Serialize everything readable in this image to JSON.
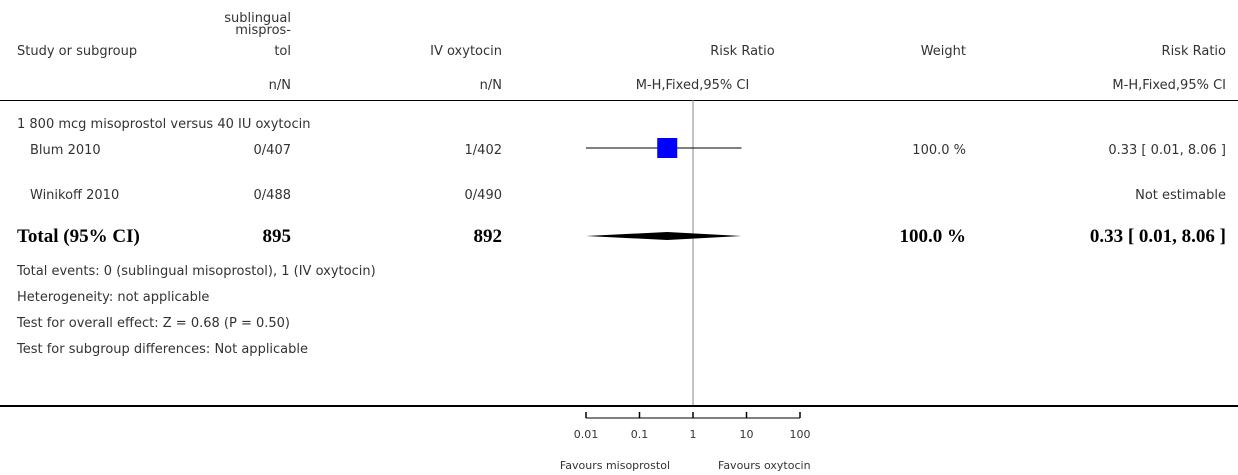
{
  "header": {
    "study": "Study or subgroup",
    "exp_line1": "sublingual",
    "exp_line2": "mispros-",
    "exp_line3": "tol",
    "ctrl": "IV oxytocin",
    "rr_plot": "Risk Ratio",
    "weight": "Weight",
    "rr_text": "Risk Ratio",
    "exp_nN": "n/N",
    "ctrl_nN": "n/N",
    "plot_method": "M-H,Fixed,95% CI",
    "text_method": "M-H,Fixed,95% CI"
  },
  "subgroup": "1 800 mcg misoprostol versus 40 IU oxytocin",
  "studies": [
    {
      "name": "Blum 2010",
      "exp": "0/407",
      "ctrl": "1/402",
      "weight": "100.0 %",
      "ci_text": "0.33 [ 0.01, 8.06 ]"
    },
    {
      "name": "Winikoff 2010",
      "exp": "0/488",
      "ctrl": "0/490",
      "weight": "",
      "ci_text": "Not estimable"
    }
  ],
  "total": {
    "label": "Total (95% CI)",
    "exp": "895",
    "ctrl": "892",
    "weight": "100.0 %",
    "ci_text": "0.33 [ 0.01, 8.06 ]"
  },
  "footnotes": {
    "events": "Total events: 0 (sublingual misoprostol), 1 (IV oxytocin)",
    "heterogeneity": "Heterogeneity: not applicable",
    "overall": "Test for overall effect: Z = 0.68 (P = 0.50)",
    "subgroup": "Test for subgroup differences: Not applicable"
  },
  "axis": {
    "ticks": [
      "0.01",
      "0.1",
      "1",
      "10",
      "100"
    ],
    "favours_left": "Favours misoprostol",
    "favours_right": "Favours oxytocin"
  },
  "colors": {
    "study_box": "#0000ff",
    "diamond": "#000000"
  },
  "chart_data": {
    "type": "forest",
    "scale": "log",
    "xlim": [
      0.01,
      100
    ],
    "tick_values": [
      0.01,
      0.1,
      1,
      10,
      100
    ],
    "reference_line": 1,
    "studies": [
      {
        "name": "Blum 2010",
        "rr": 0.33,
        "ci_low": 0.01,
        "ci_high": 8.06,
        "weight": 100.0
      },
      {
        "name": "Winikoff 2010",
        "rr": null,
        "ci_low": null,
        "ci_high": null,
        "weight": null
      }
    ],
    "pooled": {
      "rr": 0.33,
      "ci_low": 0.01,
      "ci_high": 8.06
    }
  }
}
